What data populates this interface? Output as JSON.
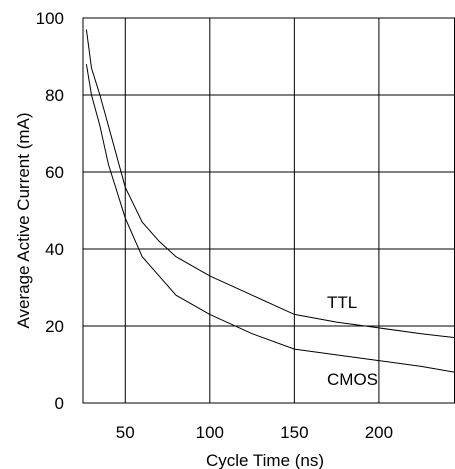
{
  "chart_data": {
    "type": "line",
    "xlabel": "Cycle Time (ns)",
    "ylabel": "Average Active Current (mA)",
    "xlim": [
      25,
      245
    ],
    "ylim": [
      0,
      100
    ],
    "x_ticks": [
      50,
      100,
      150,
      200
    ],
    "y_ticks": [
      0,
      20,
      40,
      60,
      80,
      100
    ],
    "grid": true,
    "series": [
      {
        "name": "TTL",
        "points": [
          [
            27,
            97
          ],
          [
            30,
            87
          ],
          [
            35,
            80
          ],
          [
            40,
            72
          ],
          [
            50,
            56
          ],
          [
            60,
            47
          ],
          [
            70,
            42
          ],
          [
            80,
            38
          ],
          [
            100,
            33
          ],
          [
            125,
            28
          ],
          [
            150,
            23
          ],
          [
            175,
            21
          ],
          [
            200,
            19.5
          ],
          [
            225,
            18
          ],
          [
            245,
            17
          ]
        ]
      },
      {
        "name": "CMOS",
        "points": [
          [
            27,
            88
          ],
          [
            30,
            80
          ],
          [
            35,
            72
          ],
          [
            40,
            62
          ],
          [
            50,
            48
          ],
          [
            60,
            38
          ],
          [
            70,
            33
          ],
          [
            80,
            28
          ],
          [
            100,
            23
          ],
          [
            125,
            18
          ],
          [
            150,
            14
          ],
          [
            175,
            12.5
          ],
          [
            200,
            11
          ],
          [
            225,
            9.5
          ],
          [
            245,
            8
          ]
        ]
      }
    ]
  }
}
